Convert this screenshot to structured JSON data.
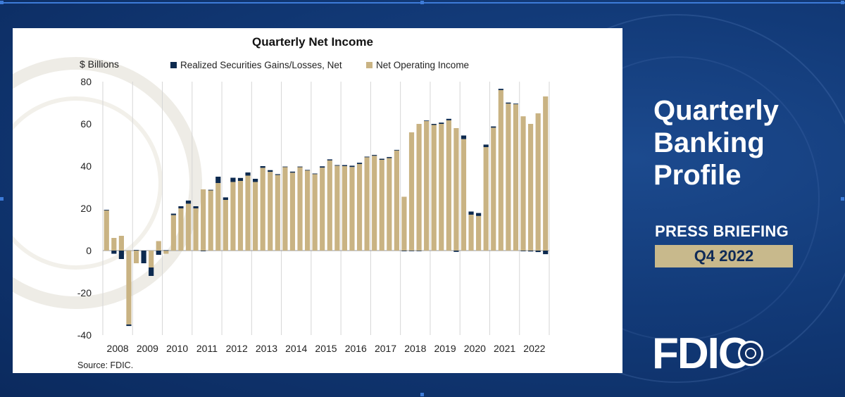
{
  "side": {
    "title_lines": [
      "Quarterly",
      "Banking",
      "Profile"
    ],
    "press": "PRESS BRIEFING",
    "quarter": "Q4 2022",
    "logo": "FDIC"
  },
  "colors": {
    "gains": "#0d2a4f",
    "operating": "#c9b383",
    "background": "#0f3470"
  },
  "chart_data": {
    "type": "bar",
    "stacked": true,
    "title": "Quarterly Net Income",
    "ylabel": "$ Billions",
    "xlabel": "",
    "source": "Source: FDIC.",
    "ylim": [
      -40,
      80
    ],
    "yticks": [
      "80",
      "60",
      "40",
      "20",
      "0",
      "-20",
      "-40"
    ],
    "ytick_values": [
      80,
      60,
      40,
      20,
      0,
      -20,
      -40
    ],
    "year_labels": [
      "2008",
      "2009",
      "2010",
      "2011",
      "2012",
      "2013",
      "2014",
      "2015",
      "2016",
      "2017",
      "2018",
      "2019",
      "2020",
      "2021",
      "2022"
    ],
    "categories": [
      "2008Q1",
      "2008Q2",
      "2008Q3",
      "2008Q4",
      "2009Q1",
      "2009Q2",
      "2009Q3",
      "2009Q4",
      "2010Q1",
      "2010Q2",
      "2010Q3",
      "2010Q4",
      "2011Q1",
      "2011Q2",
      "2011Q3",
      "2011Q4",
      "2012Q1",
      "2012Q2",
      "2012Q3",
      "2012Q4",
      "2013Q1",
      "2013Q2",
      "2013Q3",
      "2013Q4",
      "2014Q1",
      "2014Q2",
      "2014Q3",
      "2014Q4",
      "2015Q1",
      "2015Q2",
      "2015Q3",
      "2015Q4",
      "2016Q1",
      "2016Q2",
      "2016Q3",
      "2016Q4",
      "2017Q1",
      "2017Q2",
      "2017Q3",
      "2017Q4",
      "2018Q1",
      "2018Q2",
      "2018Q3",
      "2018Q4",
      "2019Q1",
      "2019Q2",
      "2019Q3",
      "2019Q4",
      "2020Q1",
      "2020Q2",
      "2020Q3",
      "2020Q4",
      "2021Q1",
      "2021Q2",
      "2021Q3",
      "2021Q4",
      "2022Q1",
      "2022Q2",
      "2022Q3",
      "2022Q4"
    ],
    "series": [
      {
        "name": "Realized Securities Gains/Losses, Net",
        "color": "#0d2a4f",
        "values": [
          0.3,
          -1.5,
          -4.0,
          -0.7,
          0.3,
          -6.0,
          -4.0,
          -2.0,
          0.2,
          0.7,
          1.0,
          1.5,
          1.0,
          -0.3,
          0.3,
          3.0,
          1.2,
          2.0,
          1.4,
          1.5,
          1.5,
          0.8,
          0.8,
          0.4,
          0.2,
          0.5,
          0.3,
          0.2,
          0.3,
          0.6,
          0.5,
          0.3,
          0.5,
          0.6,
          0.6,
          0.3,
          0.4,
          0.5,
          0.5,
          0.3,
          -0.3,
          -0.2,
          -0.2,
          0.1,
          0.5,
          0.6,
          0.7,
          -0.6,
          1.7,
          1.5,
          1.4,
          1.2,
          0.6,
          0.6,
          0.5,
          0.3,
          -0.3,
          -0.4,
          -0.7,
          -1.7
        ]
      },
      {
        "name": "Net Operating Income",
        "color": "#c9b383",
        "values": [
          19.0,
          6.0,
          7.0,
          -35.0,
          -6.0,
          0.0,
          -8.0,
          4.5,
          -1.5,
          16.8,
          20.0,
          22.2,
          20.0,
          29.0,
          28.5,
          32.0,
          24.0,
          32.5,
          33.0,
          35.5,
          32.5,
          39.2,
          37.3,
          35.8,
          39.6,
          36.9,
          39.5,
          38.0,
          36.2,
          39.3,
          42.7,
          40.2,
          40.0,
          39.6,
          41.0,
          44.2,
          44.9,
          43.0,
          43.8,
          47.4,
          25.5,
          56.0,
          60.0,
          61.5,
          59.5,
          60.0,
          61.7,
          58.0,
          52.8,
          17.0,
          16.4,
          49.0,
          58.2,
          76.0,
          69.6,
          69.3,
          63.6,
          60.0,
          65.0,
          73.0
        ]
      }
    ],
    "legend": [
      "Realized Securities Gains/Losses, Net",
      "Net Operating Income"
    ]
  }
}
